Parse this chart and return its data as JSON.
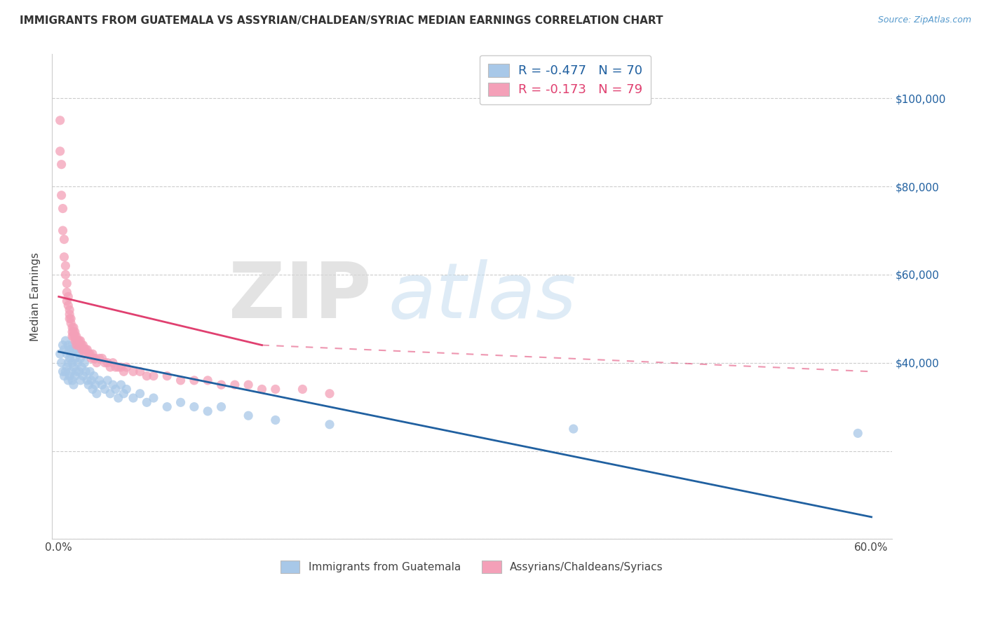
{
  "title": "IMMIGRANTS FROM GUATEMALA VS ASSYRIAN/CHALDEAN/SYRIAC MEDIAN EARNINGS CORRELATION CHART",
  "source": "Source: ZipAtlas.com",
  "ylabel": "Median Earnings",
  "xlim": [
    -0.005,
    0.615
  ],
  "ylim": [
    0,
    110000
  ],
  "ytick_positions": [
    0,
    20000,
    40000,
    60000,
    80000,
    100000
  ],
  "right_ytick_labels": [
    "",
    "",
    "$40,000",
    "$60,000",
    "$80,000",
    "$100,000"
  ],
  "legend_r_blue": "R = -0.477",
  "legend_n_blue": "N = 70",
  "legend_r_pink": "R = -0.173",
  "legend_n_pink": "N = 79",
  "blue_color": "#a8c8e8",
  "pink_color": "#f4a0b8",
  "blue_line_color": "#2060a0",
  "pink_line_color": "#e04070",
  "blue_scatter_x": [
    0.001,
    0.002,
    0.003,
    0.003,
    0.004,
    0.004,
    0.005,
    0.005,
    0.006,
    0.006,
    0.007,
    0.007,
    0.007,
    0.008,
    0.008,
    0.008,
    0.009,
    0.009,
    0.01,
    0.01,
    0.01,
    0.011,
    0.011,
    0.011,
    0.012,
    0.012,
    0.013,
    0.013,
    0.014,
    0.015,
    0.015,
    0.016,
    0.016,
    0.017,
    0.018,
    0.019,
    0.02,
    0.021,
    0.022,
    0.023,
    0.024,
    0.025,
    0.026,
    0.027,
    0.028,
    0.03,
    0.032,
    0.034,
    0.036,
    0.038,
    0.04,
    0.042,
    0.044,
    0.046,
    0.048,
    0.05,
    0.055,
    0.06,
    0.065,
    0.07,
    0.08,
    0.09,
    0.1,
    0.11,
    0.12,
    0.14,
    0.16,
    0.2,
    0.38,
    0.59
  ],
  "blue_scatter_y": [
    42000,
    40000,
    44000,
    38000,
    43000,
    37000,
    45000,
    38000,
    42000,
    39000,
    44000,
    40000,
    36000,
    43000,
    41000,
    37000,
    42000,
    38000,
    44000,
    40000,
    36000,
    43000,
    39000,
    35000,
    41000,
    37000,
    43000,
    38000,
    40000,
    42000,
    38000,
    41000,
    36000,
    39000,
    37000,
    40000,
    38000,
    36000,
    35000,
    38000,
    36000,
    34000,
    37000,
    35000,
    33000,
    36000,
    35000,
    34000,
    36000,
    33000,
    35000,
    34000,
    32000,
    35000,
    33000,
    34000,
    32000,
    33000,
    31000,
    32000,
    30000,
    31000,
    30000,
    29000,
    30000,
    28000,
    27000,
    26000,
    25000,
    24000
  ],
  "pink_scatter_x": [
    0.001,
    0.001,
    0.002,
    0.002,
    0.003,
    0.003,
    0.004,
    0.004,
    0.005,
    0.005,
    0.006,
    0.006,
    0.006,
    0.007,
    0.007,
    0.008,
    0.008,
    0.008,
    0.009,
    0.009,
    0.01,
    0.01,
    0.01,
    0.011,
    0.011,
    0.011,
    0.012,
    0.012,
    0.012,
    0.013,
    0.013,
    0.013,
    0.014,
    0.014,
    0.015,
    0.015,
    0.016,
    0.016,
    0.017,
    0.017,
    0.018,
    0.018,
    0.019,
    0.019,
    0.02,
    0.021,
    0.022,
    0.023,
    0.024,
    0.025,
    0.026,
    0.027,
    0.028,
    0.03,
    0.032,
    0.034,
    0.036,
    0.038,
    0.04,
    0.042,
    0.044,
    0.046,
    0.048,
    0.05,
    0.055,
    0.06,
    0.065,
    0.07,
    0.08,
    0.09,
    0.1,
    0.11,
    0.12,
    0.13,
    0.14,
    0.15,
    0.16,
    0.18,
    0.2
  ],
  "pink_scatter_y": [
    95000,
    88000,
    85000,
    78000,
    75000,
    70000,
    68000,
    64000,
    62000,
    60000,
    58000,
    56000,
    54000,
    55000,
    53000,
    52000,
    51000,
    50000,
    50000,
    49000,
    48000,
    47000,
    46000,
    48000,
    47000,
    46000,
    47000,
    46000,
    45000,
    46000,
    45000,
    44000,
    45000,
    44000,
    45000,
    44000,
    45000,
    44000,
    44000,
    43000,
    44000,
    43000,
    43000,
    42000,
    43000,
    43000,
    42000,
    42000,
    41000,
    42000,
    41000,
    41000,
    40000,
    41000,
    41000,
    40000,
    40000,
    39000,
    40000,
    39000,
    39000,
    39000,
    38000,
    39000,
    38000,
    38000,
    37000,
    37000,
    37000,
    36000,
    36000,
    36000,
    35000,
    35000,
    35000,
    34000,
    34000,
    34000,
    33000
  ],
  "blue_line_x0": 0.0,
  "blue_line_y0": 42500,
  "blue_line_x1": 0.6,
  "blue_line_y1": 5000,
  "pink_line_x0": 0.0,
  "pink_line_y0": 55000,
  "pink_line_x1_solid": 0.15,
  "pink_line_y1_solid": 44000,
  "pink_line_x1_dash": 0.6,
  "pink_line_y1_dash": 38000
}
